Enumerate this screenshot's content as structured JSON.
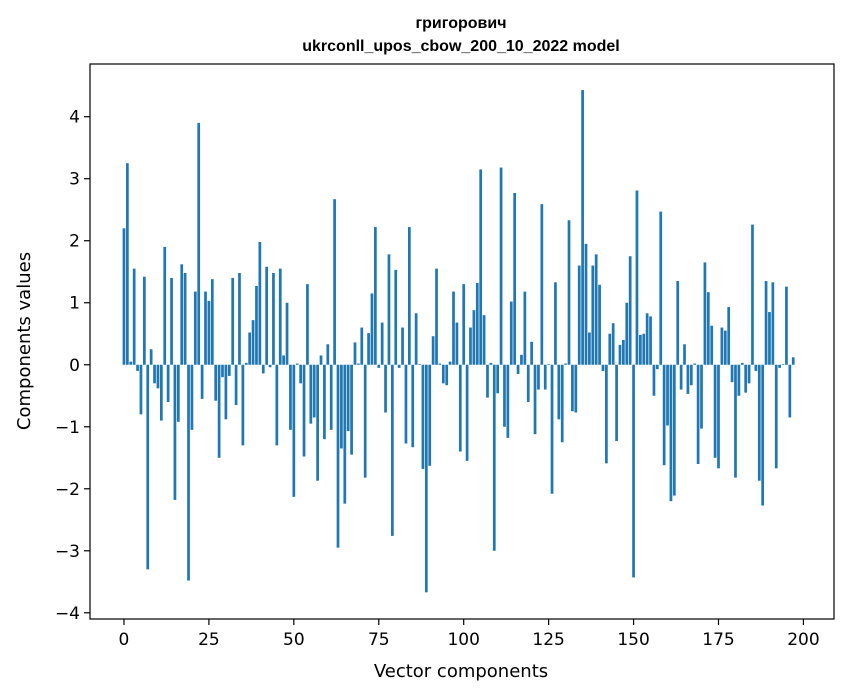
{
  "chart_data": {
    "type": "bar",
    "title": "григорович",
    "subtitle": "ukrconll_upos_cbow_200_10_2022 model",
    "xlabel": "Vector components",
    "ylabel": "Components values",
    "xlim": [
      -10,
      209
    ],
    "ylim": [
      -4.1,
      4.85
    ],
    "xticks": [
      0,
      25,
      50,
      75,
      100,
      125,
      150,
      175,
      200
    ],
    "yticks": [
      -4,
      -3,
      -2,
      -1,
      0,
      1,
      2,
      3,
      4
    ],
    "bar_color": "#1f77b4",
    "grid": false,
    "values": [
      2.2,
      3.25,
      0.05,
      1.55,
      -0.1,
      -0.8,
      1.42,
      -3.3,
      0.25,
      -0.3,
      -0.38,
      -0.9,
      1.9,
      -0.6,
      1.4,
      -2.18,
      -0.92,
      1.62,
      1.48,
      -3.48,
      -1.05,
      1.18,
      3.9,
      -0.55,
      1.18,
      1.03,
      1.38,
      -0.58,
      -1.5,
      -0.2,
      -0.88,
      -0.18,
      1.4,
      -0.65,
      1.48,
      -1.3,
      0.03,
      0.52,
      0.72,
      1.27,
      1.98,
      -0.14,
      1.58,
      -0.04,
      1.48,
      -1.3,
      1.55,
      0.15,
      1.0,
      -1.05,
      -2.13,
      0.02,
      -0.3,
      -1.48,
      1.3,
      -0.95,
      -0.85,
      -1.87,
      0.15,
      -1.2,
      0.33,
      -1.05,
      2.67,
      -2.95,
      -1.35,
      -2.24,
      -1.07,
      -1.45,
      0.36,
      0.02,
      0.6,
      -1.82,
      0.51,
      1.15,
      2.22,
      -0.05,
      0.68,
      -0.77,
      1.78,
      -2.76,
      1.53,
      -0.05,
      0.6,
      -1.27,
      2.22,
      -1.33,
      0.83,
      0.01,
      -1.68,
      -3.67,
      -1.63,
      0.46,
      1.55,
      0.02,
      -0.3,
      -0.33,
      0.05,
      1.18,
      0.68,
      -1.4,
      1.3,
      -1.55,
      0.6,
      0.88,
      1.32,
      3.15,
      0.8,
      -0.53,
      0.03,
      -3.0,
      -0.46,
      3.18,
      -1.0,
      -1.18,
      1.02,
      2.77,
      -0.15,
      0.16,
      1.18,
      -0.6,
      0.37,
      -1.12,
      -0.4,
      2.59,
      -0.4,
      0.01,
      -2.08,
      1.33,
      -0.88,
      -1.25,
      0.02,
      2.33,
      -0.75,
      -0.77,
      1.6,
      4.43,
      1.95,
      0.52,
      1.6,
      1.78,
      1.29,
      -0.1,
      -1.59,
      0.5,
      0.67,
      -1.23,
      0.32,
      0.4,
      1.0,
      1.75,
      -3.43,
      2.81,
      0.48,
      0.5,
      0.83,
      0.78,
      -0.5,
      -0.07,
      2.47,
      -1.62,
      -0.98,
      -2.2,
      -2.11,
      1.35,
      -0.4,
      0.33,
      -0.47,
      -0.33,
      0.02,
      -1.6,
      -1.03,
      1.65,
      1.17,
      0.63,
      -1.5,
      -1.67,
      0.6,
      0.55,
      0.93,
      -0.28,
      -1.82,
      -0.5,
      0.03,
      -0.45,
      -0.3,
      2.26,
      -0.1,
      -1.87,
      -2.27,
      1.35,
      0.85,
      1.33,
      -1.67,
      -0.05,
      0.01,
      1.26,
      -0.85,
      0.12
    ]
  }
}
